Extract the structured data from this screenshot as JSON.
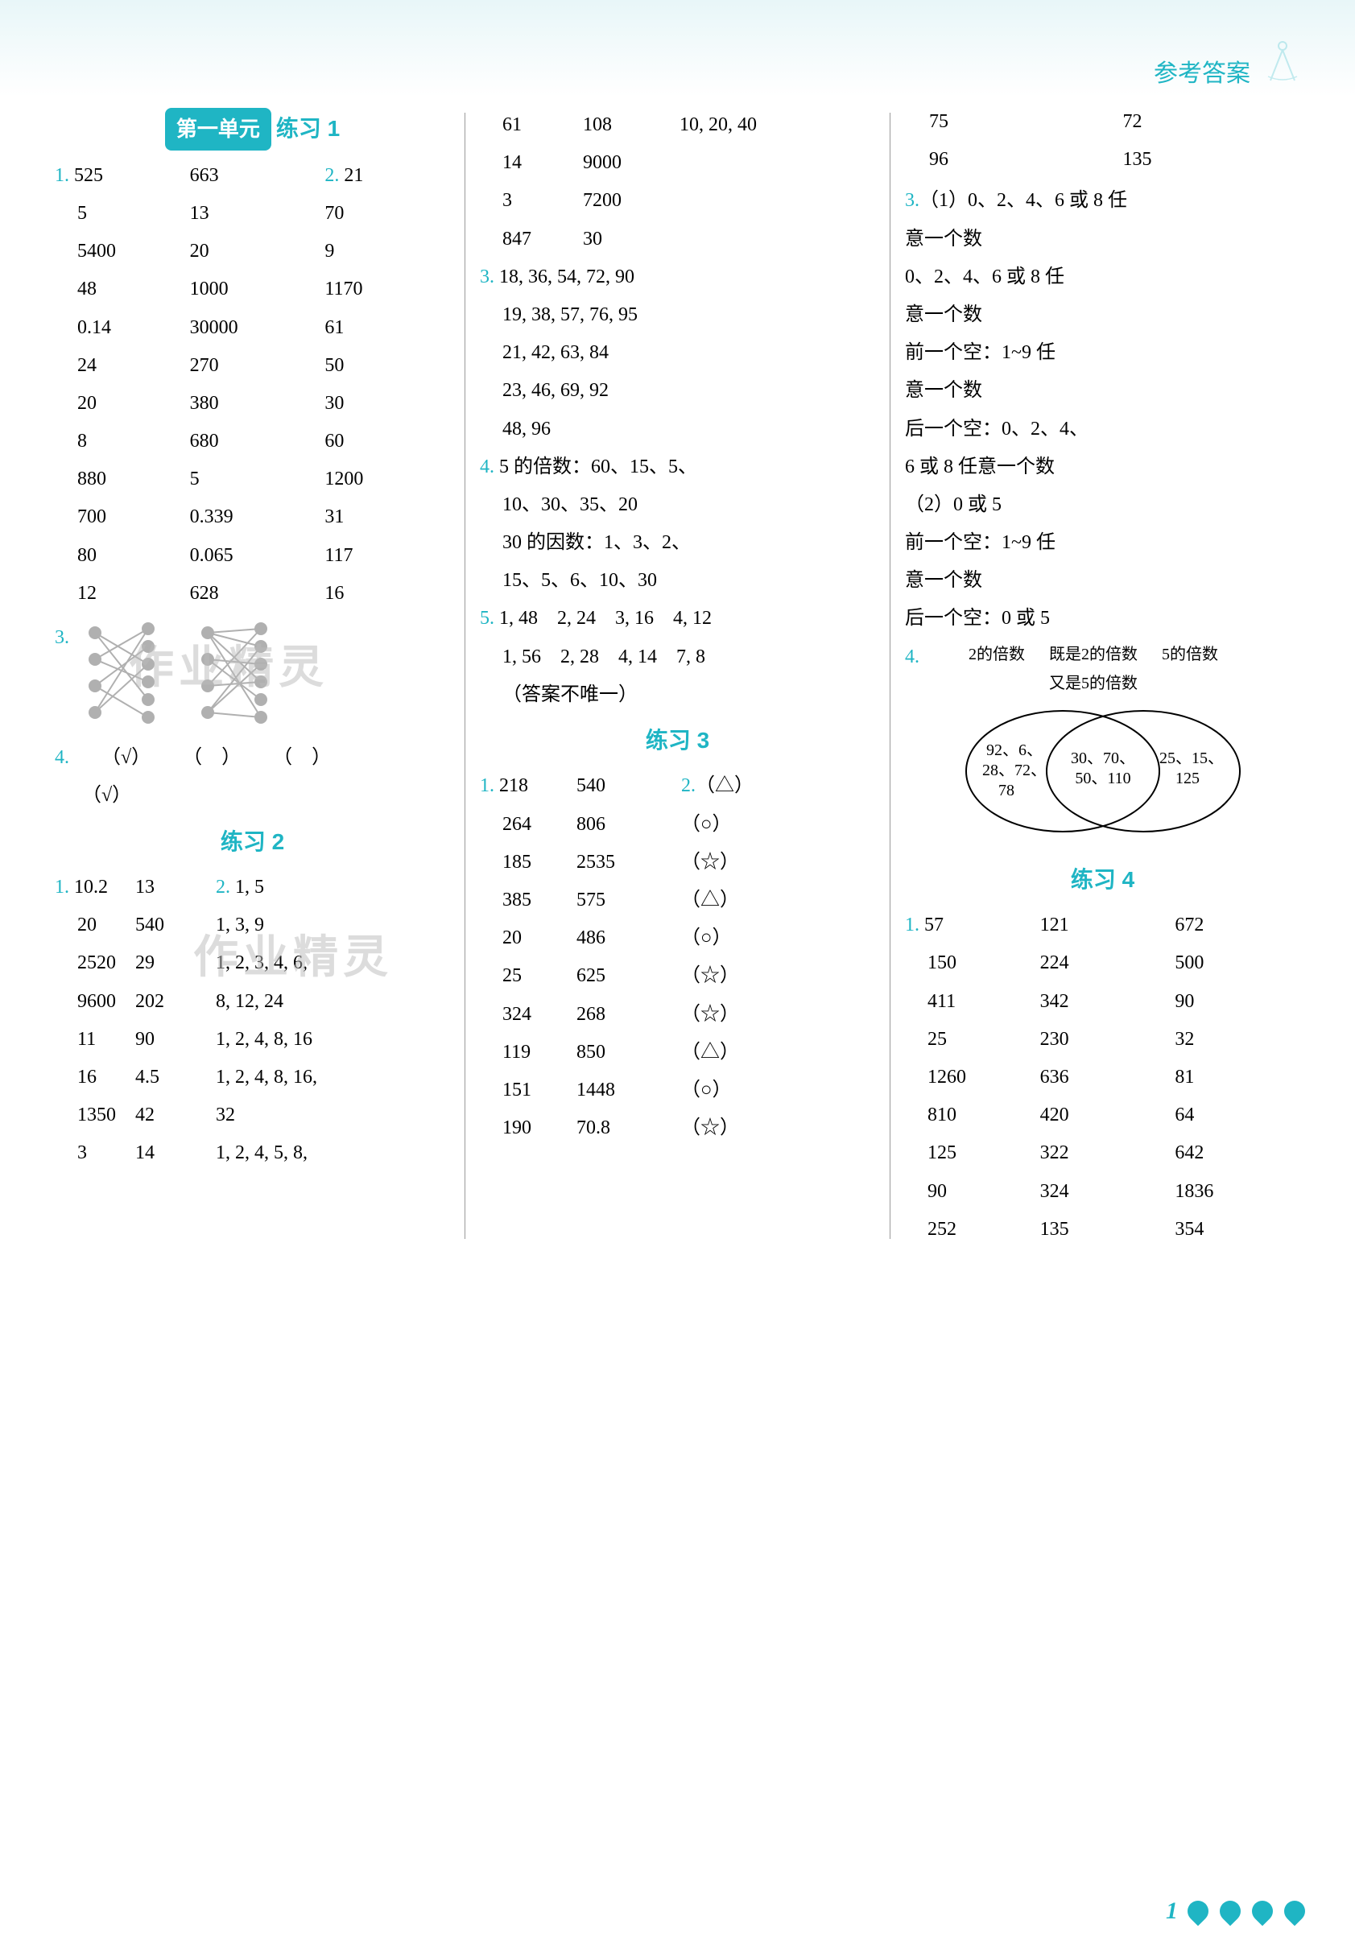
{
  "header": {
    "title": "参考答案"
  },
  "page_number": "1",
  "colors": {
    "accent": "#1fb5c4",
    "text": "#000000",
    "watermark": "#bbbbbb",
    "bg_top": "#e8f6f8"
  },
  "unit1": {
    "badge": "第一单元",
    "ex1_title": "练习 1",
    "q1_label": "1.",
    "q2_label": "2.",
    "q3_label": "3.",
    "q4_label": "4.",
    "grid_rows": [
      [
        "525",
        "663",
        "21"
      ],
      [
        "5",
        "13",
        "70"
      ],
      [
        "5400",
        "20",
        "9"
      ],
      [
        "48",
        "1000",
        "1170"
      ],
      [
        "0.14",
        "30000",
        "61"
      ],
      [
        "24",
        "270",
        "50"
      ],
      [
        "20",
        "380",
        "30"
      ],
      [
        "8",
        "680",
        "60"
      ],
      [
        "880",
        "5",
        "1200"
      ],
      [
        "700",
        "0.339",
        "31"
      ],
      [
        "80",
        "0.065",
        "117"
      ],
      [
        "12",
        "628",
        "16"
      ]
    ],
    "q4_row1": [
      "（√）",
      "（　）",
      "（　）"
    ],
    "q4_row2": [
      "（√）"
    ]
  },
  "ex2": {
    "title": "练习 2",
    "q1_label": "1.",
    "q2_label": "2.",
    "col12_rows": [
      [
        "10.2",
        "13"
      ],
      [
        "20",
        "540"
      ],
      [
        "2520",
        "29"
      ],
      [
        "9600",
        "202"
      ],
      [
        "11",
        "90"
      ],
      [
        "16",
        "4.5"
      ],
      [
        "1350",
        "42"
      ],
      [
        "3",
        "14"
      ]
    ],
    "col3_rows": [
      "1, 5",
      "1, 3, 9",
      "1, 2, 3, 4, 6,",
      "8, 12, 24",
      "1, 2, 4, 8, 16",
      "1, 2, 4, 8, 16,",
      "32",
      "1, 2, 4, 5, 8,"
    ]
  },
  "col2_top": {
    "rows": [
      [
        "61",
        "108",
        "10, 20, 40"
      ],
      [
        "14",
        "9000",
        ""
      ],
      [
        "3",
        "7200",
        ""
      ],
      [
        "847",
        "30",
        ""
      ]
    ],
    "q3_label": "3.",
    "q3_lines": [
      "18, 36, 54, 72, 90",
      "19, 38, 57, 76, 95",
      "21, 42, 63, 84",
      "23, 46, 69, 92",
      "48, 96"
    ],
    "q4_label": "4.",
    "q4_lines": [
      "5 的倍数：60、15、5、",
      "10、30、35、20",
      "30 的因数：1、3、2、",
      "15、5、6、10、30"
    ],
    "q5_label": "5.",
    "q5_lines": [
      "1, 48　2, 24　3, 16　4, 12",
      "1, 56　2, 28　4, 14　7, 8",
      "（答案不唯一）"
    ]
  },
  "ex3": {
    "title": "练习 3",
    "q1_label": "1.",
    "q2_label": "2.",
    "rows": [
      [
        "218",
        "540",
        "（△）"
      ],
      [
        "264",
        "806",
        "（○）"
      ],
      [
        "185",
        "2535",
        "（☆）"
      ],
      [
        "385",
        "575",
        "（△）"
      ],
      [
        "20",
        "486",
        "（○）"
      ],
      [
        "25",
        "625",
        "（☆）"
      ],
      [
        "324",
        "268",
        "（☆）"
      ],
      [
        "119",
        "850",
        "（△）"
      ],
      [
        "151",
        "1448",
        "（○）"
      ],
      [
        "190",
        "70.8",
        "（☆）"
      ]
    ]
  },
  "col3_top": {
    "rows": [
      [
        "75",
        "72"
      ],
      [
        "96",
        "135"
      ]
    ],
    "q3_label": "3.",
    "q3_lines": [
      "（1）0、2、4、6 或 8 任",
      "意一个数",
      "0、2、4、6 或 8 任",
      "意一个数",
      "前一个空：1~9 任",
      "意一个数",
      "后一个空：0、2、4、",
      "6 或 8 任意一个数",
      "（2）0 或 5",
      "前一个空：1~9 任",
      "意一个数",
      "后一个空：0 或 5"
    ],
    "q4_label": "4.",
    "venn": {
      "label_left": "2的倍数",
      "label_mid_top": "既是2的倍数",
      "label_mid_bot": "又是5的倍数",
      "label_right": "5的倍数",
      "left_only": "92、6、\n28、72、\n78",
      "intersection": "30、70、\n50、110",
      "right_only": "25、15、\n125"
    }
  },
  "ex4": {
    "title": "练习 4",
    "q1_label": "1.",
    "rows": [
      [
        "57",
        "121",
        "672"
      ],
      [
        "150",
        "224",
        "500"
      ],
      [
        "411",
        "342",
        "90"
      ],
      [
        "25",
        "230",
        "32"
      ],
      [
        "1260",
        "636",
        "81"
      ],
      [
        "810",
        "420",
        "64"
      ],
      [
        "125",
        "322",
        "642"
      ],
      [
        "90",
        "324",
        "1836"
      ],
      [
        "252",
        "135",
        "354"
      ]
    ]
  },
  "watermarks": {
    "wm1": "作业精灵",
    "wm2": "作业精灵"
  },
  "diagrams": {
    "d1": {
      "left_nodes": 4,
      "right_nodes": 6
    },
    "d2": {
      "left_nodes": 4,
      "right_nodes": 6
    }
  }
}
